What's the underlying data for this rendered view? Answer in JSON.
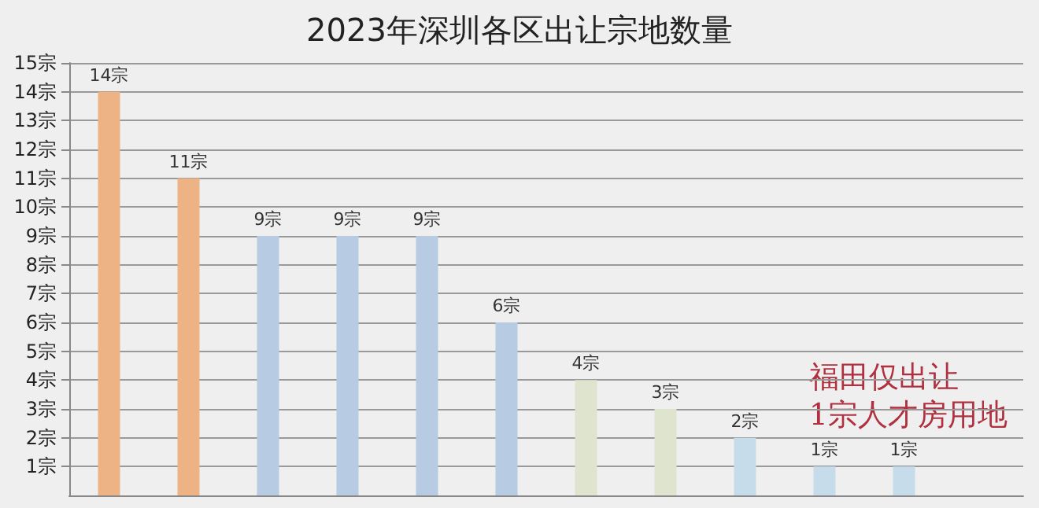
{
  "chart_data": {
    "type": "bar",
    "title": "2023年深圳各区出让宗地数量",
    "categories": [
      null,
      null,
      null,
      null,
      null,
      null,
      null,
      null,
      null,
      null,
      null,
      null
    ],
    "values": [
      14,
      11,
      9,
      9,
      9,
      6,
      4,
      3,
      2,
      1,
      1,
      null
    ],
    "colors": [
      "#eeb384",
      "#eeb384",
      "#b7cbe2",
      "#b7cbe2",
      "#b7cbe2",
      "#b7cbe2",
      "#dfe4cf",
      "#dfe4cf",
      "#c6dcea",
      "#c6dcea",
      "#c6dcea",
      "#c6dcea"
    ],
    "value_labels": [
      "14宗",
      "11宗",
      "9宗",
      "9宗",
      "9宗",
      "6宗",
      "4宗",
      "3宗",
      "2宗",
      "1宗",
      "1宗",
      null
    ],
    "ylim": [
      0,
      15
    ],
    "yticks": [
      {
        "value": 1,
        "label": "1宗"
      },
      {
        "value": 2,
        "label": "2宗"
      },
      {
        "value": 3,
        "label": "3宗"
      },
      {
        "value": 4,
        "label": "4宗"
      },
      {
        "value": 5,
        "label": "5宗"
      },
      {
        "value": 6,
        "label": "6宗"
      },
      {
        "value": 7,
        "label": "7宗"
      },
      {
        "value": 8,
        "label": "8宗"
      },
      {
        "value": 9,
        "label": "9宗"
      },
      {
        "value": 10,
        "label": "10宗"
      },
      {
        "value": 11,
        "label": "11宗"
      },
      {
        "value": 12,
        "label": "12宗"
      },
      {
        "value": 13,
        "label": "13宗"
      },
      {
        "value": 14,
        "label": "14宗"
      },
      {
        "value": 15,
        "label": "15宗"
      }
    ],
    "grid": "y",
    "annotations": [
      "福田仅出让\n1宗人才房用地"
    ]
  }
}
